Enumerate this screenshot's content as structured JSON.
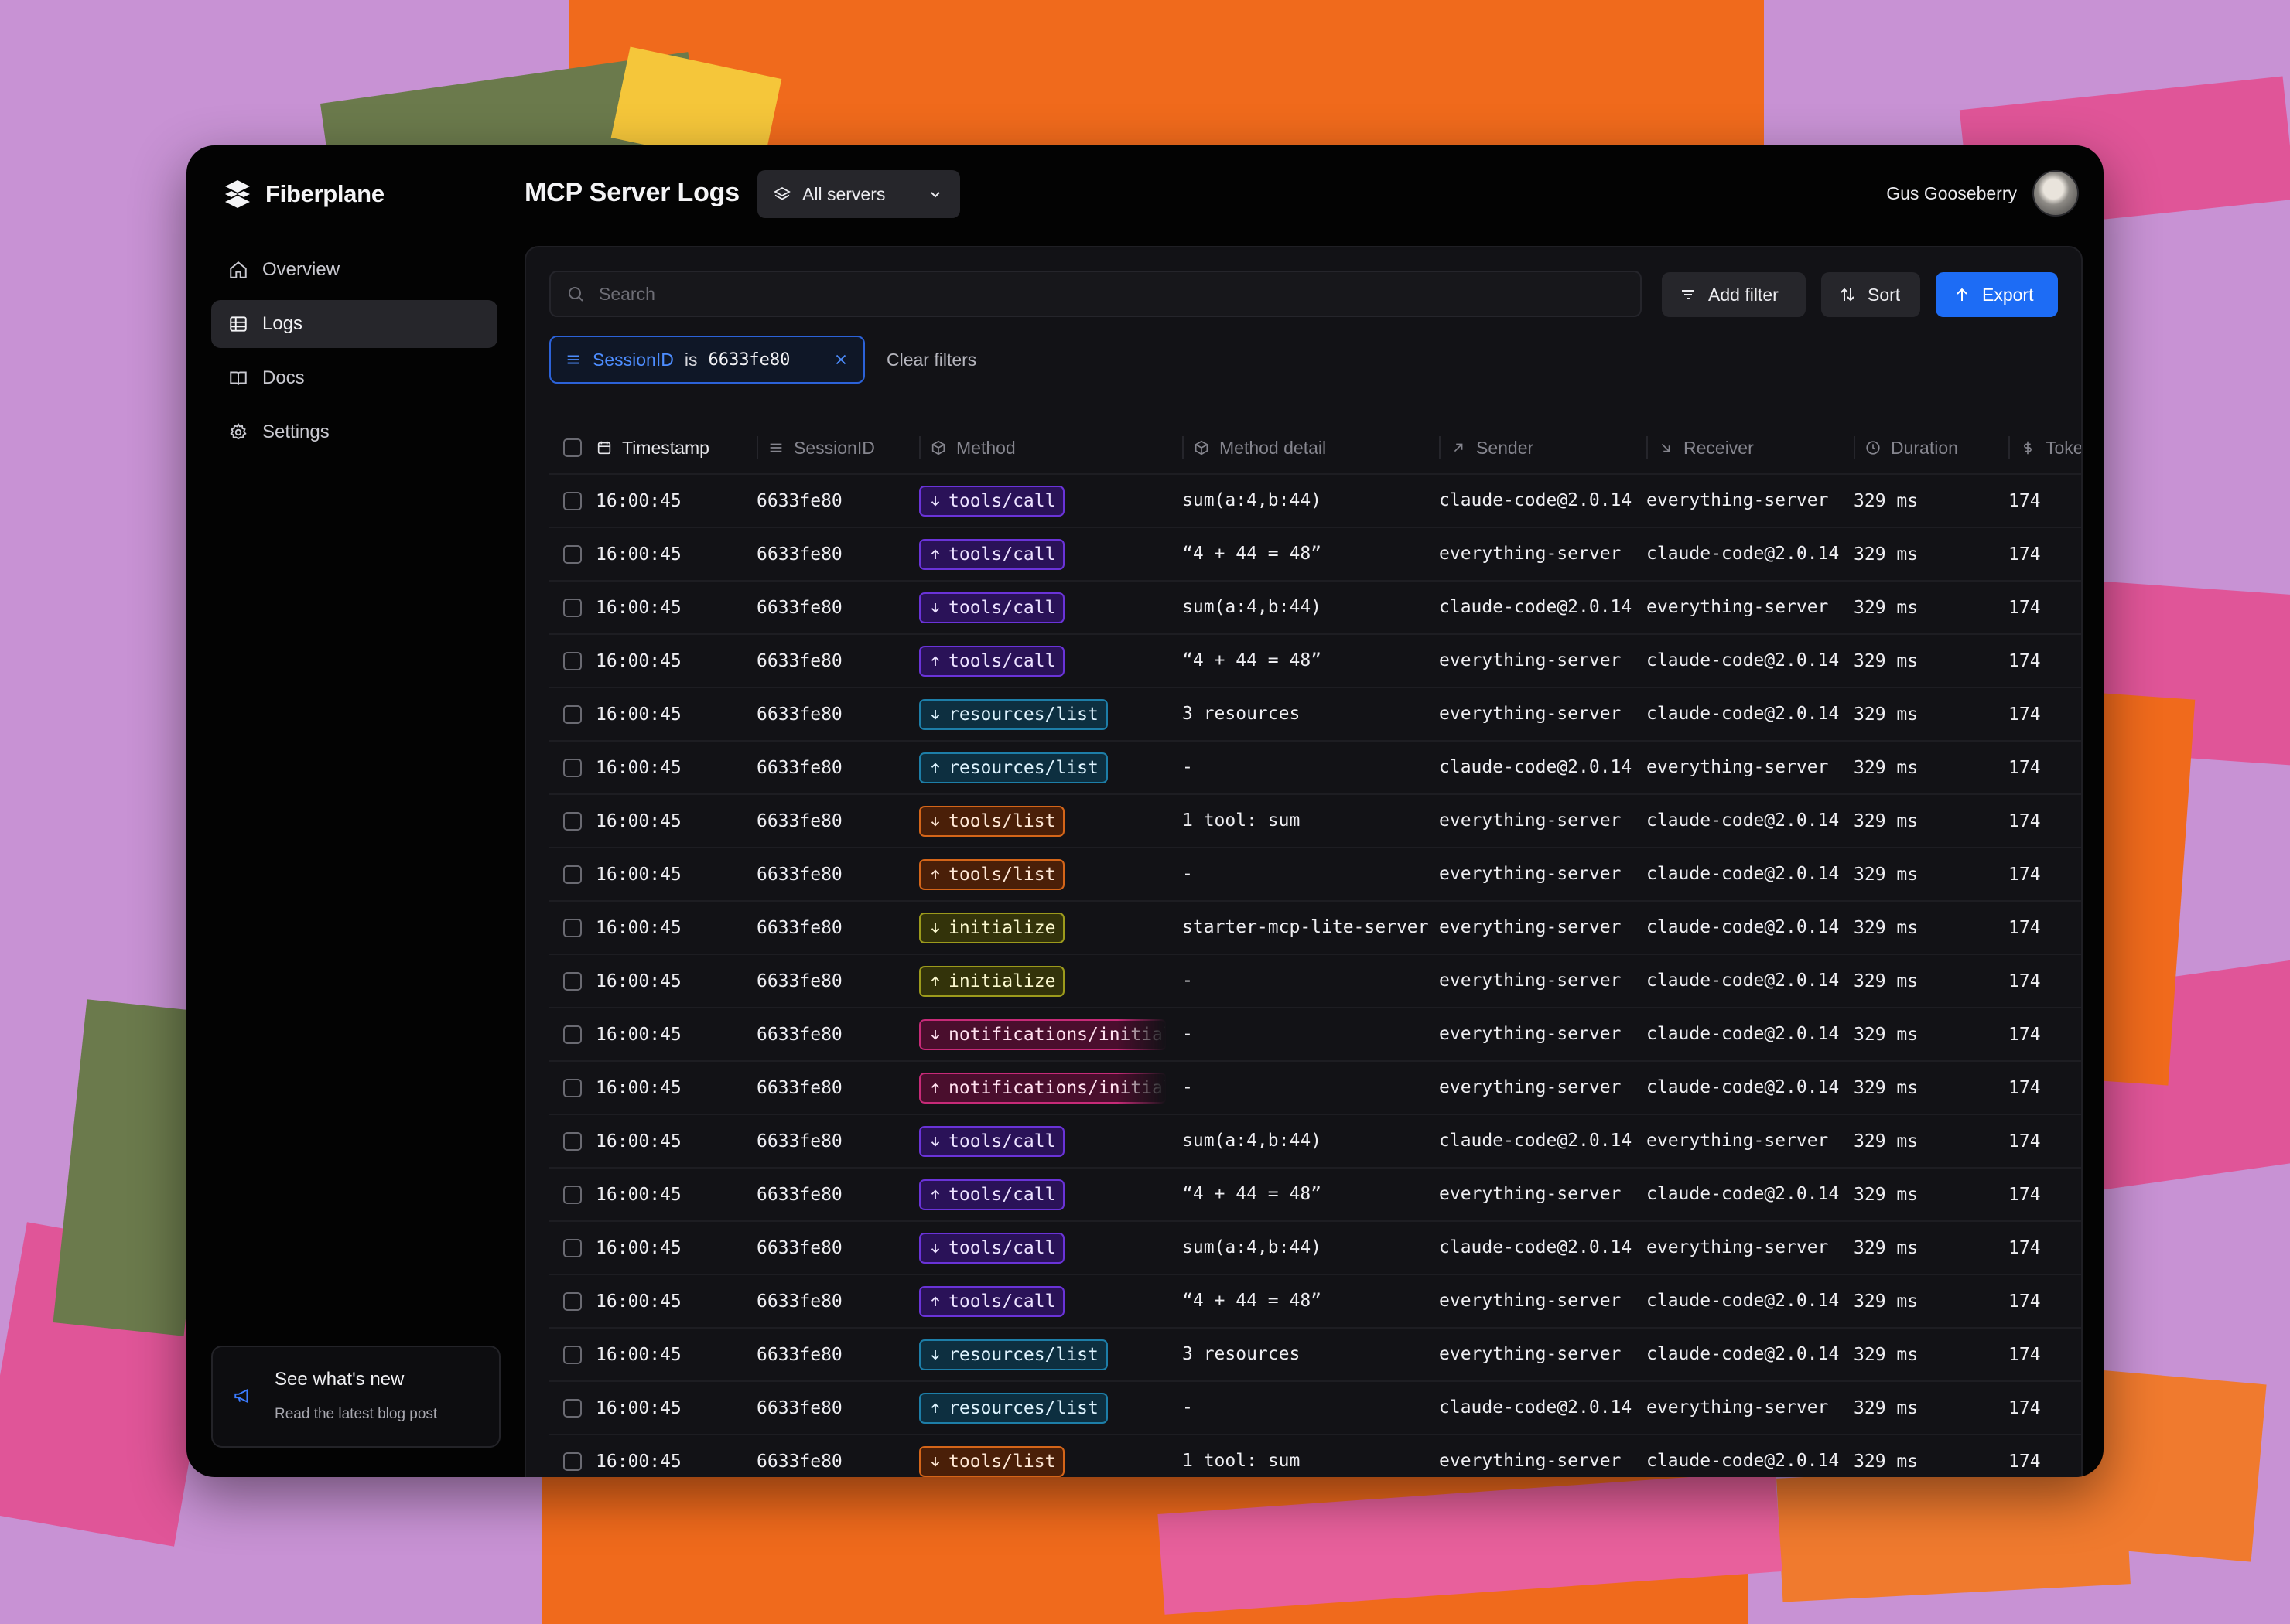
{
  "app": {
    "name": "Fiberplane"
  },
  "sidebar": {
    "items": [
      {
        "label": "Overview",
        "icon": "home-icon",
        "active": false
      },
      {
        "label": "Logs",
        "icon": "table-icon",
        "active": true
      },
      {
        "label": "Docs",
        "icon": "book-icon",
        "active": false
      },
      {
        "label": "Settings",
        "icon": "gear-icon",
        "active": false
      }
    ],
    "news": {
      "title": "See what's new",
      "subtitle": "Read the latest blog post",
      "icon": "megaphone-icon"
    }
  },
  "header": {
    "title": "MCP Server Logs",
    "server_select": "All servers",
    "user_name": "Gus Gooseberry"
  },
  "toolbar": {
    "search_placeholder": "Search",
    "add_filter": "Add filter",
    "sort": "Sort",
    "export": "Export",
    "clear_filters": "Clear filters"
  },
  "filter_chip": {
    "key": "SessionID",
    "op": "is",
    "value": "6633fe80"
  },
  "table": {
    "columns": [
      {
        "label": "Timestamp",
        "icon": "calendar-icon"
      },
      {
        "label": "SessionID",
        "icon": "lines-icon"
      },
      {
        "label": "Method",
        "icon": "cube-icon"
      },
      {
        "label": "Method detail",
        "icon": "cube-icon"
      },
      {
        "label": "Sender",
        "icon": "arrow-up-right-icon"
      },
      {
        "label": "Receiver",
        "icon": "arrow-down-right-icon"
      },
      {
        "label": "Duration",
        "icon": "clock-icon"
      },
      {
        "label": "Tokens",
        "icon": "dollar-icon"
      }
    ],
    "rows": [
      {
        "ts": "16:00:45",
        "sid": "6633fe80",
        "method": "tools/call",
        "dir": "down",
        "detail": "sum(a:4,b:44)",
        "sender": "claude-code@2.0.14",
        "receiver": "everything-server",
        "duration": "329 ms",
        "tokens": "174"
      },
      {
        "ts": "16:00:45",
        "sid": "6633fe80",
        "method": "tools/call",
        "dir": "up",
        "detail": "“4 + 44 = 48”",
        "sender": "everything-server",
        "receiver": "claude-code@2.0.14",
        "duration": "329 ms",
        "tokens": "174"
      },
      {
        "ts": "16:00:45",
        "sid": "6633fe80",
        "method": "tools/call",
        "dir": "down",
        "detail": "sum(a:4,b:44)",
        "sender": "claude-code@2.0.14",
        "receiver": "everything-server",
        "duration": "329 ms",
        "tokens": "174"
      },
      {
        "ts": "16:00:45",
        "sid": "6633fe80",
        "method": "tools/call",
        "dir": "up",
        "detail": "“4 + 44 = 48”",
        "sender": "everything-server",
        "receiver": "claude-code@2.0.14",
        "duration": "329 ms",
        "tokens": "174"
      },
      {
        "ts": "16:00:45",
        "sid": "6633fe80",
        "method": "resources/list",
        "dir": "down",
        "detail": "3 resources",
        "sender": "everything-server",
        "receiver": "claude-code@2.0.14",
        "duration": "329 ms",
        "tokens": "174"
      },
      {
        "ts": "16:00:45",
        "sid": "6633fe80",
        "method": "resources/list",
        "dir": "up",
        "detail": "-",
        "sender": "claude-code@2.0.14",
        "receiver": "everything-server",
        "duration": "329 ms",
        "tokens": "174"
      },
      {
        "ts": "16:00:45",
        "sid": "6633fe80",
        "method": "tools/list",
        "dir": "down",
        "detail": "1 tool: sum",
        "sender": "everything-server",
        "receiver": "claude-code@2.0.14",
        "duration": "329 ms",
        "tokens": "174"
      },
      {
        "ts": "16:00:45",
        "sid": "6633fe80",
        "method": "tools/list",
        "dir": "up",
        "detail": "-",
        "sender": "everything-server",
        "receiver": "claude-code@2.0.14",
        "duration": "329 ms",
        "tokens": "174"
      },
      {
        "ts": "16:00:45",
        "sid": "6633fe80",
        "method": "initialize",
        "dir": "down",
        "detail": "starter-mcp-lite-server",
        "sender": "everything-server",
        "receiver": "claude-code@2.0.14",
        "duration": "329 ms",
        "tokens": "174"
      },
      {
        "ts": "16:00:45",
        "sid": "6633fe80",
        "method": "initialize",
        "dir": "up",
        "detail": "-",
        "sender": "everything-server",
        "receiver": "claude-code@2.0.14",
        "duration": "329 ms",
        "tokens": "174"
      },
      {
        "ts": "16:00:45",
        "sid": "6633fe80",
        "method": "notifications/initialized",
        "dir": "down",
        "detail": "-",
        "sender": "everything-server",
        "receiver": "claude-code@2.0.14",
        "duration": "329 ms",
        "tokens": "174"
      },
      {
        "ts": "16:00:45",
        "sid": "6633fe80",
        "method": "notifications/initialized",
        "dir": "up",
        "detail": "-",
        "sender": "everything-server",
        "receiver": "claude-code@2.0.14",
        "duration": "329 ms",
        "tokens": "174"
      },
      {
        "ts": "16:00:45",
        "sid": "6633fe80",
        "method": "tools/call",
        "dir": "down",
        "detail": "sum(a:4,b:44)",
        "sender": "claude-code@2.0.14",
        "receiver": "everything-server",
        "duration": "329 ms",
        "tokens": "174"
      },
      {
        "ts": "16:00:45",
        "sid": "6633fe80",
        "method": "tools/call",
        "dir": "up",
        "detail": "“4 + 44 = 48”",
        "sender": "everything-server",
        "receiver": "claude-code@2.0.14",
        "duration": "329 ms",
        "tokens": "174"
      },
      {
        "ts": "16:00:45",
        "sid": "6633fe80",
        "method": "tools/call",
        "dir": "down",
        "detail": "sum(a:4,b:44)",
        "sender": "claude-code@2.0.14",
        "receiver": "everything-server",
        "duration": "329 ms",
        "tokens": "174"
      },
      {
        "ts": "16:00:45",
        "sid": "6633fe80",
        "method": "tools/call",
        "dir": "up",
        "detail": "“4 + 44 = 48”",
        "sender": "everything-server",
        "receiver": "claude-code@2.0.14",
        "duration": "329 ms",
        "tokens": "174"
      },
      {
        "ts": "16:00:45",
        "sid": "6633fe80",
        "method": "resources/list",
        "dir": "down",
        "detail": "3 resources",
        "sender": "everything-server",
        "receiver": "claude-code@2.0.14",
        "duration": "329 ms",
        "tokens": "174"
      },
      {
        "ts": "16:00:45",
        "sid": "6633fe80",
        "method": "resources/list",
        "dir": "up",
        "detail": "-",
        "sender": "claude-code@2.0.14",
        "receiver": "everything-server",
        "duration": "329 ms",
        "tokens": "174"
      },
      {
        "ts": "16:00:45",
        "sid": "6633fe80",
        "method": "tools/list",
        "dir": "down",
        "detail": "1 tool: sum",
        "sender": "everything-server",
        "receiver": "claude-code@2.0.14",
        "duration": "329 ms",
        "tokens": "174"
      }
    ]
  },
  "colors": {
    "accent": "#1d6cf5",
    "tools_call": "#6a33d8",
    "resources_list": "#1d7ea8",
    "tools_list": "#d46519",
    "initialize": "#9c9a1c",
    "notifications": "#c72a78"
  }
}
